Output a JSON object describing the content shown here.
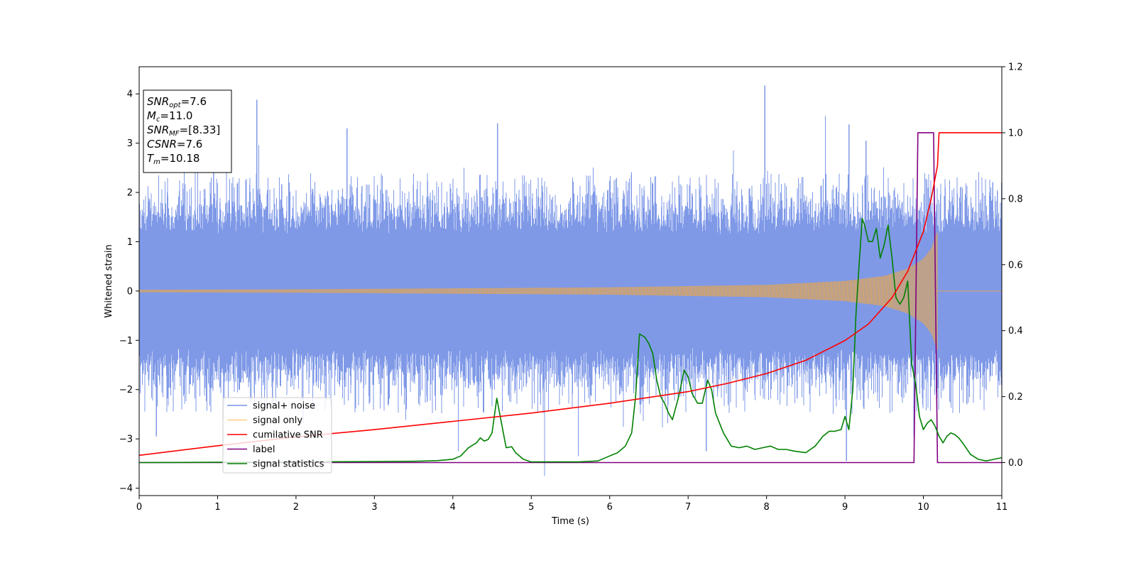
{
  "chart_data": {
    "type": "line",
    "xlabel": "Time (s)",
    "ylabel": "Whitened strain",
    "xlim": [
      0,
      11
    ],
    "ylim_left": [
      -4.15,
      4.55
    ],
    "ylim_right": [
      -0.1,
      1.2
    ],
    "x_ticks": [
      0,
      1,
      2,
      3,
      4,
      5,
      6,
      7,
      8,
      9,
      10,
      11
    ],
    "x_tick_labels": [
      "0",
      "1",
      "2",
      "3",
      "4",
      "5",
      "6",
      "7",
      "8",
      "9",
      "10",
      "11"
    ],
    "y_left_ticks": [
      -4,
      -3,
      -2,
      -1,
      0,
      1,
      2,
      3,
      4
    ],
    "y_left_tick_labels": [
      "−4",
      "−3",
      "−2",
      "−1",
      "0",
      "1",
      "2",
      "3",
      "4"
    ],
    "y_right_ticks": [
      0.0,
      0.2,
      0.4,
      0.6,
      0.8,
      1.0,
      1.2
    ],
    "y_right_tick_labels": [
      "0.0",
      "0.2",
      "0.4",
      "0.6",
      "0.8",
      "1.0",
      "1.2"
    ],
    "grid": false,
    "legend_position": "lower-left",
    "info_box": {
      "position": "top-left",
      "lines": [
        {
          "var": "SNR",
          "sub": "opt",
          "value": "=7.6"
        },
        {
          "var": "M",
          "sub": "c",
          "value": "=11.0"
        },
        {
          "var": "SNR",
          "sub": "MF",
          "value": "=[8.33]"
        },
        {
          "var": "CSNR",
          "sub": "",
          "value": "=7.6"
        },
        {
          "var": "T",
          "sub": "m",
          "value": "=10.18"
        }
      ]
    },
    "series": [
      {
        "name": "signal+ noise",
        "axis": "left",
        "color": "#7894e6",
        "kind": "noise",
        "std": 1.0,
        "spike_max": [
          [
            0.95,
            2.7
          ],
          [
            1.5,
            3.88
          ],
          [
            2.65,
            3.3
          ],
          [
            4.57,
            3.4
          ],
          [
            7.98,
            4.17
          ],
          [
            8.75,
            3.55
          ],
          [
            9.05,
            3.38
          ],
          [
            9.27,
            3.05
          ]
        ],
        "spike_min": [
          [
            0.22,
            -2.95
          ],
          [
            4.07,
            -3.25
          ],
          [
            5.17,
            -3.75
          ],
          [
            5.6,
            -3.35
          ],
          [
            7.23,
            -3.25
          ],
          [
            9.02,
            -3.45
          ],
          [
            9.88,
            -2.95
          ]
        ]
      },
      {
        "name": "signal only",
        "axis": "left",
        "color": "#ffb84d",
        "kind": "chirp",
        "merger_time": 10.18,
        "points": [
          [
            0,
            0.02
          ],
          [
            2,
            0.03
          ],
          [
            4,
            0.05
          ],
          [
            6,
            0.07
          ],
          [
            8,
            0.12
          ],
          [
            9,
            0.2
          ],
          [
            9.5,
            0.3
          ],
          [
            9.8,
            0.45
          ],
          [
            10.0,
            0.65
          ],
          [
            10.1,
            0.85
          ],
          [
            10.18,
            1.2
          ]
        ]
      },
      {
        "name": "cumilative SNR",
        "axis": "right",
        "color": "#ff0000",
        "x": [
          0,
          1,
          2,
          3,
          4,
          5,
          6,
          7,
          7.5,
          8,
          8.5,
          9,
          9.3,
          9.6,
          9.8,
          10.0,
          10.1,
          10.18,
          10.2,
          11
        ],
        "y": [
          0.022,
          0.051,
          0.078,
          0.1,
          0.125,
          0.15,
          0.18,
          0.215,
          0.24,
          0.27,
          0.31,
          0.37,
          0.42,
          0.5,
          0.58,
          0.7,
          0.8,
          0.9,
          1.0,
          1.0
        ]
      },
      {
        "name": "label",
        "axis": "right",
        "color": "#800080",
        "x": [
          0,
          9.88,
          9.93,
          10.13,
          10.18,
          11
        ],
        "y": [
          0,
          0,
          1.0,
          1.0,
          0,
          0
        ]
      },
      {
        "name": "signal statistics",
        "axis": "right",
        "color": "#008000",
        "x": [
          0,
          1,
          2,
          3,
          3.5,
          3.8,
          4.0,
          4.1,
          4.2,
          4.3,
          4.35,
          4.4,
          4.45,
          4.5,
          4.56,
          4.62,
          4.68,
          4.75,
          4.8,
          4.9,
          5.0,
          5.3,
          5.6,
          5.85,
          6.0,
          6.1,
          6.2,
          6.28,
          6.33,
          6.38,
          6.45,
          6.5,
          6.55,
          6.6,
          6.65,
          6.7,
          6.75,
          6.8,
          6.88,
          6.95,
          7.0,
          7.05,
          7.12,
          7.18,
          7.25,
          7.3,
          7.35,
          7.45,
          7.55,
          7.65,
          7.75,
          7.85,
          7.95,
          8.05,
          8.15,
          8.25,
          8.35,
          8.5,
          8.62,
          8.72,
          8.8,
          8.87,
          8.95,
          9.0,
          9.05,
          9.1,
          9.14,
          9.18,
          9.22,
          9.25,
          9.3,
          9.35,
          9.4,
          9.45,
          9.5,
          9.55,
          9.6,
          9.65,
          9.7,
          9.75,
          9.8,
          9.85,
          9.9,
          9.95,
          10.0,
          10.05,
          10.1,
          10.15,
          10.2,
          10.25,
          10.3,
          10.35,
          10.4,
          10.45,
          10.5,
          10.6,
          10.7,
          10.8,
          10.9,
          11.0
        ],
        "y": [
          0.0,
          0.001,
          0.002,
          0.003,
          0.004,
          0.006,
          0.01,
          0.02,
          0.045,
          0.06,
          0.075,
          0.065,
          0.07,
          0.09,
          0.195,
          0.12,
          0.045,
          0.048,
          0.03,
          0.01,
          0.002,
          0.002,
          0.002,
          0.005,
          0.02,
          0.03,
          0.05,
          0.09,
          0.2,
          0.39,
          0.38,
          0.36,
          0.33,
          0.25,
          0.2,
          0.18,
          0.15,
          0.13,
          0.2,
          0.28,
          0.26,
          0.21,
          0.18,
          0.18,
          0.25,
          0.22,
          0.15,
          0.09,
          0.05,
          0.045,
          0.05,
          0.04,
          0.045,
          0.05,
          0.04,
          0.04,
          0.035,
          0.03,
          0.05,
          0.08,
          0.095,
          0.095,
          0.1,
          0.14,
          0.1,
          0.22,
          0.45,
          0.6,
          0.74,
          0.72,
          0.67,
          0.67,
          0.71,
          0.62,
          0.66,
          0.72,
          0.62,
          0.5,
          0.48,
          0.5,
          0.55,
          0.3,
          0.24,
          0.14,
          0.1,
          0.12,
          0.13,
          0.11,
          0.08,
          0.06,
          0.08,
          0.09,
          0.085,
          0.075,
          0.06,
          0.025,
          0.01,
          0.005,
          0.01,
          0.015
        ]
      }
    ]
  }
}
